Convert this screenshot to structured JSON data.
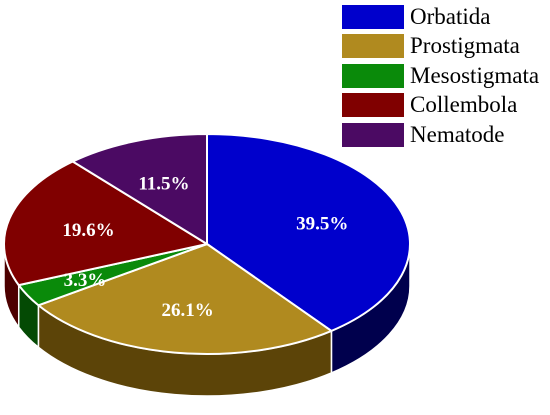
{
  "chart_data": {
    "type": "pie",
    "style": "3d",
    "legend_position": "top-right",
    "slices": [
      {
        "name": "Orbatida",
        "value": 39.5,
        "label": "39.5%",
        "color": "#0000cc",
        "side_color": "#00004d"
      },
      {
        "name": "Prostigmata",
        "value": 26.1,
        "label": "26.1%",
        "color": "#b08a1f",
        "side_color": "#5c4408"
      },
      {
        "name": "Mesostigmata",
        "value": 3.3,
        "label": "3.3%",
        "color": "#0a8a0a",
        "side_color": "#044a04"
      },
      {
        "name": "Collembola",
        "value": 19.6,
        "label": "19.6%",
        "color": "#800000",
        "side_color": "#4d0000"
      },
      {
        "name": "Nematode",
        "value": 11.5,
        "label": "11.5%",
        "color": "#4b0a63",
        "side_color": "#2a0238"
      }
    ]
  }
}
